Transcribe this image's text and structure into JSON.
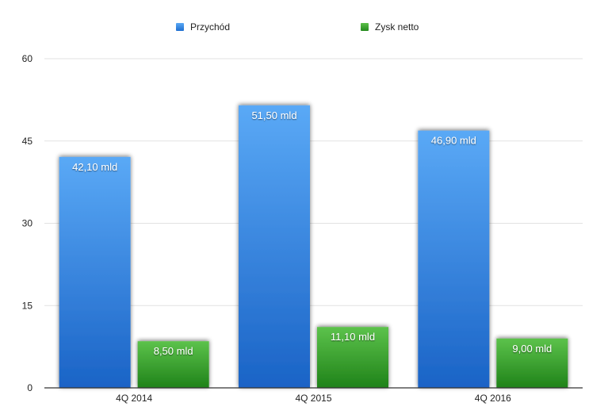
{
  "chart_data": {
    "type": "bar",
    "categories": [
      "4Q 2014",
      "4Q 2015",
      "4Q 2016"
    ],
    "series": [
      {
        "name": "Przychód",
        "values": [
          42.1,
          51.5,
          46.9
        ],
        "labels": [
          "42,10 mld",
          "51,50 mld",
          "46,90 mld"
        ],
        "color": "#3d8ae6"
      },
      {
        "name": "Zysk netto",
        "values": [
          8.5,
          11.1,
          9.0
        ],
        "labels": [
          "8,50 mld",
          "11,10 mld",
          "9,00 mld"
        ],
        "color": "#3a9a2c"
      }
    ],
    "ylim": [
      0,
      60
    ],
    "yticks": [
      0,
      15,
      30,
      45,
      60
    ],
    "grid": true,
    "legend": "top-center"
  }
}
